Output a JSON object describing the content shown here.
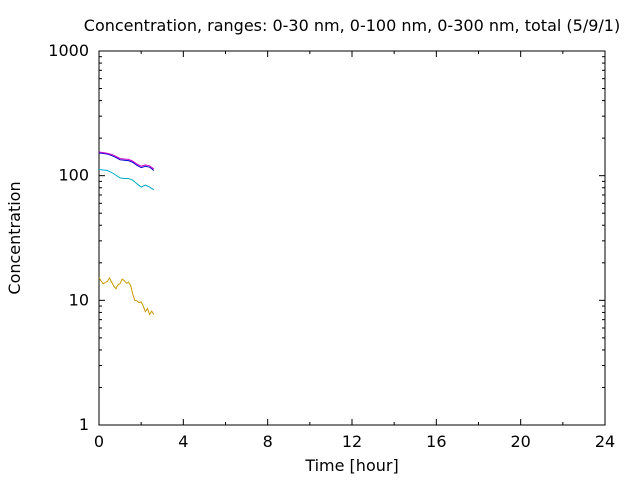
{
  "chart_data": {
    "type": "line",
    "title": "Concentration, ranges: 0-30 nm, 0-100 nm, 0-300 nm, total (5/9/1)",
    "xlabel": "Time [hour]",
    "ylabel": "Concentration",
    "xlim": [
      0,
      24
    ],
    "ylim": [
      1,
      1000
    ],
    "yscale": "log",
    "grid": false,
    "legend": "none",
    "x_ticks": [
      "0",
      "4",
      "8",
      "12",
      "16",
      "20",
      "24"
    ],
    "y_ticks": [
      "1",
      "10",
      "100",
      "1000"
    ],
    "series": [
      {
        "color": "#0000cc",
        "x": [
          0.0,
          0.2,
          0.4,
          0.6,
          0.8,
          1.0,
          1.2,
          1.4,
          1.6,
          1.8,
          2.0,
          2.2,
          2.4,
          2.6
        ],
        "y": [
          152,
          151,
          149,
          145,
          140,
          134,
          133,
          132,
          128,
          121,
          116,
          119,
          117,
          110
        ]
      },
      {
        "color": "#cc00cc",
        "x": [
          0.0,
          0.2,
          0.4,
          0.6,
          0.8,
          1.0,
          1.2,
          1.4,
          1.6,
          1.8,
          2.0,
          2.2,
          2.4,
          2.6
        ],
        "y": [
          155,
          153,
          151,
          148,
          143,
          137,
          136,
          135,
          131,
          124,
          119,
          122,
          120,
          113
        ]
      },
      {
        "color": "#00aacc",
        "x": [
          0.0,
          0.2,
          0.4,
          0.6,
          0.8,
          1.0,
          1.2,
          1.4,
          1.6,
          1.8,
          2.0,
          2.2,
          2.4,
          2.6
        ],
        "y": [
          112,
          111,
          110,
          106,
          101,
          96,
          95,
          95,
          92,
          86,
          81,
          84,
          81,
          77
        ]
      },
      {
        "color": "#cc9900",
        "x": [
          0.0,
          0.1,
          0.2,
          0.3,
          0.4,
          0.5,
          0.6,
          0.7,
          0.8,
          0.9,
          1.0,
          1.1,
          1.2,
          1.3,
          1.4,
          1.5,
          1.6,
          1.7,
          1.8,
          1.9,
          2.0,
          2.1,
          2.2,
          2.3,
          2.4,
          2.5,
          2.6
        ],
        "y": [
          15.2,
          14.3,
          13.6,
          13.9,
          14.2,
          15.1,
          14.0,
          13.0,
          12.4,
          13.3,
          13.6,
          14.8,
          14.4,
          13.7,
          14.0,
          13.2,
          11.2,
          10.0,
          9.9,
          9.6,
          9.7,
          9.0,
          8.1,
          8.6,
          7.7,
          8.2,
          7.7
        ]
      }
    ]
  }
}
